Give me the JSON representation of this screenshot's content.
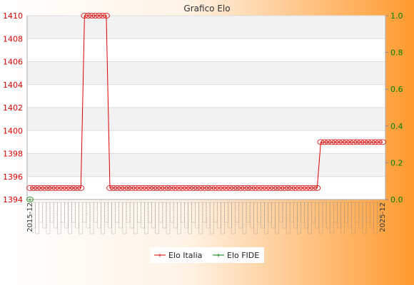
{
  "chart_data": {
    "type": "line",
    "title": "Grafico Elo",
    "y_left": {
      "min": 1394,
      "max": 1410,
      "ticks": [
        "1394",
        "1396",
        "1398",
        "1400",
        "1402",
        "1404",
        "1406",
        "1408",
        "1410"
      ]
    },
    "y_right": {
      "min": 0.0,
      "max": 1.0,
      "ticks": [
        "0.0",
        "0.2",
        "0.4",
        "0.6",
        "0.8",
        "1.0"
      ]
    },
    "x_first_label": "2015-12",
    "x_last_label": "2025-12",
    "grid": true,
    "legend": {
      "placement": "bottom-center",
      "entries": [
        {
          "label": "Elo Italia"
        },
        {
          "label": "Elo FIDE"
        }
      ]
    },
    "series": [
      {
        "name": "Elo Italia",
        "color": "#dd0000",
        "segments": [
          {
            "count": 15,
            "value": 1395
          },
          {
            "count": 7,
            "value": 1410
          },
          {
            "count": 58,
            "value": 1395
          },
          {
            "count": 18,
            "value": 1399
          }
        ]
      },
      {
        "name": "Elo FIDE",
        "color": "#008000",
        "values": [
          0.0
        ]
      }
    ],
    "colors": {
      "italia": "#dd0000",
      "fide": "#008000"
    }
  }
}
